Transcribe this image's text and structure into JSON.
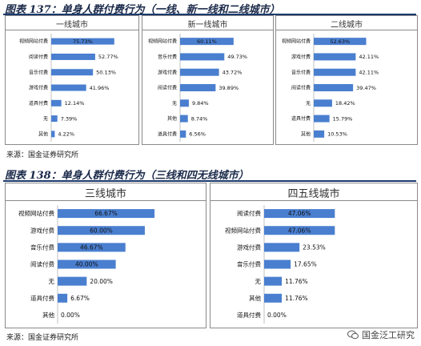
{
  "figures": [
    {
      "title": "图表 137：单身人群付费行为（一线、新一线和二线城市）",
      "source": "来源：国金证券研究所"
    },
    {
      "title": "图表 138：单身人群付费行为（三线和四无线城市）",
      "source": "来源：国金证券研究所"
    }
  ],
  "watermark": {
    "text": "国金泛工研究"
  },
  "colors": {
    "bar": "#4a7fd0",
    "rule": "#1b3a6e"
  },
  "chart_data": [
    {
      "type": "bar",
      "orientation": "horizontal",
      "title": "一线城市",
      "ylim": [
        0,
        100
      ],
      "categories": [
        "视频网站付费",
        "阅读付费",
        "音乐付费",
        "游戏付费",
        "道具付费",
        "无",
        "其他"
      ],
      "values": [
        75.73,
        52.77,
        50.13,
        41.96,
        12.14,
        7.39,
        4.22
      ],
      "labels": [
        "75.73%",
        "52.77%",
        "50.13%",
        "41.96%",
        "12.14%",
        "7.39%",
        "4.22%"
      ]
    },
    {
      "type": "bar",
      "orientation": "horizontal",
      "title": "新一线城市",
      "ylim": [
        0,
        100
      ],
      "categories": [
        "视频网站付费",
        "音乐付费",
        "游戏付费",
        "阅读付费",
        "无",
        "其他",
        "道具付费"
      ],
      "values": [
        60.11,
        49.73,
        43.72,
        39.89,
        9.84,
        8.74,
        6.56
      ],
      "labels": [
        "60.11%",
        "49.73%",
        "43.72%",
        "39.89%",
        "9.84%",
        "8.74%",
        "6.56%"
      ]
    },
    {
      "type": "bar",
      "orientation": "horizontal",
      "title": "二线城市",
      "ylim": [
        0,
        100
      ],
      "categories": [
        "视频网站付费",
        "游戏付费",
        "音乐付费",
        "阅读付费",
        "无",
        "道具付费",
        "其他"
      ],
      "values": [
        52.63,
        42.11,
        42.11,
        39.47,
        18.42,
        15.79,
        10.53
      ],
      "labels": [
        "52.63%",
        "42.11%",
        "42.11%",
        "39.47%",
        "18.42%",
        "15.79%",
        "10.53%"
      ]
    },
    {
      "type": "bar",
      "orientation": "horizontal",
      "title": "三线城市",
      "ylim": [
        0,
        100
      ],
      "categories": [
        "视频网站付费",
        "游戏付费",
        "音乐付费",
        "阅读付费",
        "无",
        "道具付费",
        "其他"
      ],
      "values": [
        66.67,
        60.0,
        46.67,
        40.0,
        20.0,
        6.67,
        0.0
      ],
      "labels": [
        "66.67%",
        "60.00%",
        "46.67%",
        "40.00%",
        "20.00%",
        "6.67%",
        "0.00%"
      ]
    },
    {
      "type": "bar",
      "orientation": "horizontal",
      "title": "四五线城市",
      "ylim": [
        0,
        100
      ],
      "categories": [
        "阅读付费",
        "视频网站付费",
        "游戏付费",
        "音乐付费",
        "无",
        "其他",
        "道具付费"
      ],
      "values": [
        47.06,
        47.06,
        23.53,
        17.65,
        11.76,
        11.76,
        0.0
      ],
      "labels": [
        "47.06%",
        "47.06%",
        "23.53%",
        "17.65%",
        "11.76%",
        "11.76%",
        "0.00%"
      ]
    }
  ]
}
